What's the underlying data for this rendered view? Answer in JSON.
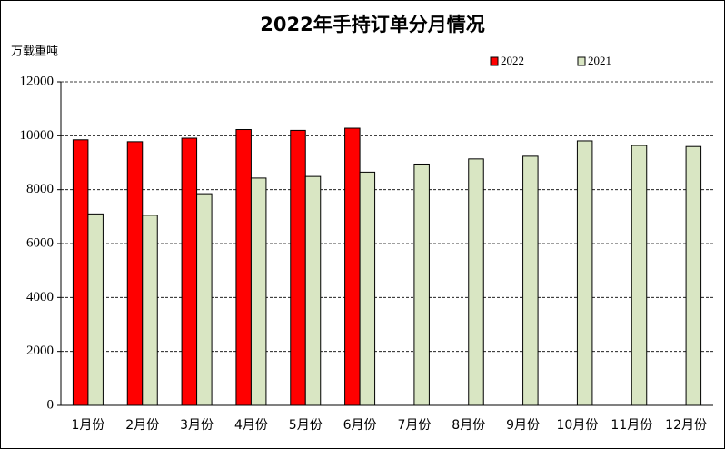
{
  "chart_data": {
    "type": "bar",
    "title": "2022年手持订单分月情况",
    "y_label": "万载重吨",
    "categories": [
      "1月份",
      "2月份",
      "3月份",
      "4月份",
      "5月份",
      "6月份",
      "7月份",
      "8月份",
      "9月份",
      "10月份",
      "11月份",
      "12月份"
    ],
    "series": [
      {
        "name": "2022",
        "color": "#ff0000",
        "values": [
          9850,
          9780,
          9910,
          10230,
          10200,
          10280,
          null,
          null,
          null,
          null,
          null,
          null
        ]
      },
      {
        "name": "2021",
        "color": "#d9e6c3",
        "values": [
          7100,
          7050,
          7850,
          8430,
          8490,
          8650,
          8950,
          9140,
          9240,
          9810,
          9640,
          9600
        ]
      }
    ],
    "ylim": [
      0,
      12000
    ],
    "yticks": [
      0,
      2000,
      4000,
      6000,
      8000,
      10000,
      12000
    ],
    "grid": true
  }
}
